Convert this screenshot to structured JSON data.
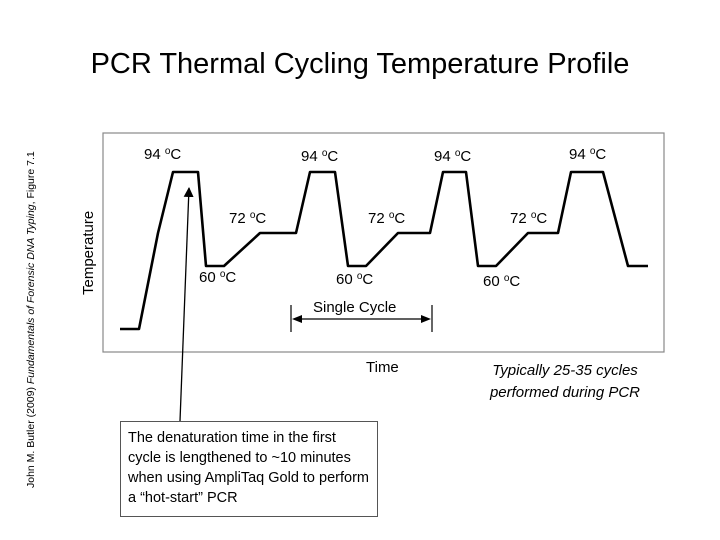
{
  "title": "PCR Thermal Cycling Temperature Profile",
  "citation": {
    "prefix": "John M. Butler (2009) ",
    "book": "Fundamentals of Forensic DNA Typing",
    "suffix": ", Figure 7.1"
  },
  "axes": {
    "ylabel": "Temperature",
    "xlabel": "Time"
  },
  "temperature_labels": [
    {
      "value": "94",
      "unit": "C"
    },
    {
      "value": "94",
      "unit": "C"
    },
    {
      "value": "94",
      "unit": "C"
    },
    {
      "value": "94",
      "unit": "C"
    },
    {
      "value": "72",
      "unit": "C"
    },
    {
      "value": "72",
      "unit": "C"
    },
    {
      "value": "72",
      "unit": "C"
    },
    {
      "value": "60",
      "unit": "C"
    },
    {
      "value": "60",
      "unit": "C"
    },
    {
      "value": "60",
      "unit": "C"
    }
  ],
  "degree_symbol": "o",
  "single_cycle_label": "Single Cycle",
  "cycles_note": [
    "Typically 25-35 cycles",
    "performed during PCR"
  ],
  "denaturation_note": "The denaturation time in the first cycle is lengthened to ~10 minutes when using AmpliTaq Gold to perform a “hot-start” PCR"
}
